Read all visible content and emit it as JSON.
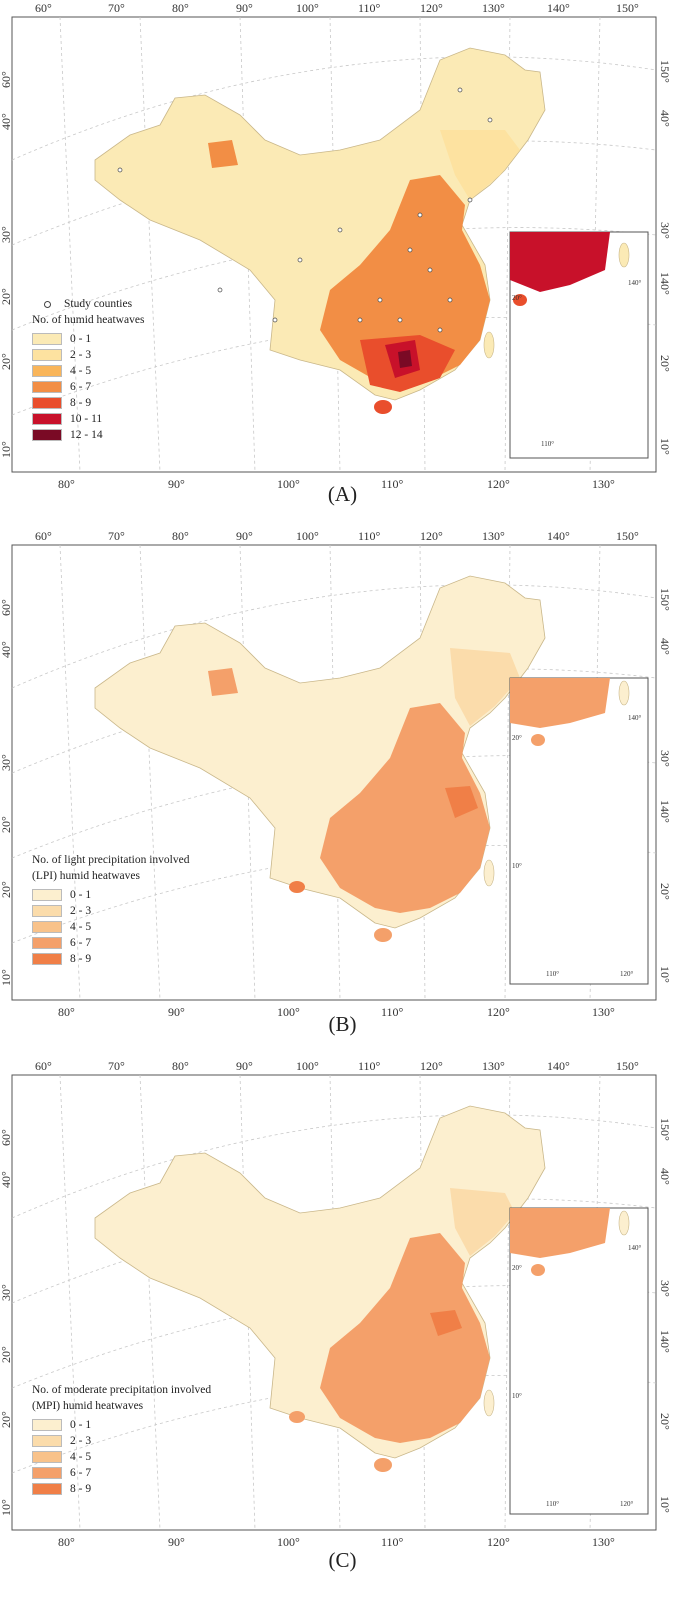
{
  "top_lon_ticks": [
    "60°",
    "70°",
    "80°",
    "90°",
    "100°",
    "110°",
    "120°",
    "130°",
    "140°",
    "150°"
  ],
  "bottom_lon_ticks": [
    "80°",
    "90°",
    "100°",
    "110°",
    "120°",
    "130°"
  ],
  "left_lat_ticks": [
    "60°",
    "40°",
    "30°",
    "20°",
    "20°",
    "10°"
  ],
  "right_lat_ticks": [
    "150°",
    "40°",
    "30°",
    "140°",
    "20°",
    "10°"
  ],
  "inset_ticks": {
    "a": "20°",
    "b": "140°",
    "c": "10°",
    "d": "110°",
    "e": "120°"
  },
  "panels": [
    {
      "caption": "(A)",
      "study_label": "Study counties",
      "legend_title": "No. of humid heatwaves",
      "legend": [
        {
          "label": "0 - 1",
          "color": "#fbeab5"
        },
        {
          "label": "2 - 3",
          "color": "#fde2a0"
        },
        {
          "label": "4 - 5",
          "color": "#f9b55a"
        },
        {
          "label": "6 - 7",
          "color": "#f28e45"
        },
        {
          "label": "8 - 9",
          "color": "#e94e2c"
        },
        {
          "label": "10 - 11",
          "color": "#c8112a"
        },
        {
          "label": "12 - 14",
          "color": "#7a0a25"
        }
      ]
    },
    {
      "caption": "(B)",
      "legend_title": "No. of light precipitation involved (LPI) humid heatwaves",
      "legend": [
        {
          "label": "0 - 1",
          "color": "#fcefcf"
        },
        {
          "label": "2 - 3",
          "color": "#fbdcab"
        },
        {
          "label": "4 - 5",
          "color": "#f8c28a"
        },
        {
          "label": "6 - 7",
          "color": "#f4a06a"
        },
        {
          "label": "8 - 9",
          "color": "#f07f47"
        }
      ]
    },
    {
      "caption": "(C)",
      "legend_title": "No. of moderate precipitation involved (MPI) humid heatwaves",
      "legend": [
        {
          "label": "0 - 1",
          "color": "#fcefcf"
        },
        {
          "label": "2 - 3",
          "color": "#fbdcab"
        },
        {
          "label": "4 - 5",
          "color": "#f8c28a"
        },
        {
          "label": "6 - 7",
          "color": "#f4a06a"
        },
        {
          "label": "8 - 9",
          "color": "#f07f47"
        }
      ]
    }
  ]
}
